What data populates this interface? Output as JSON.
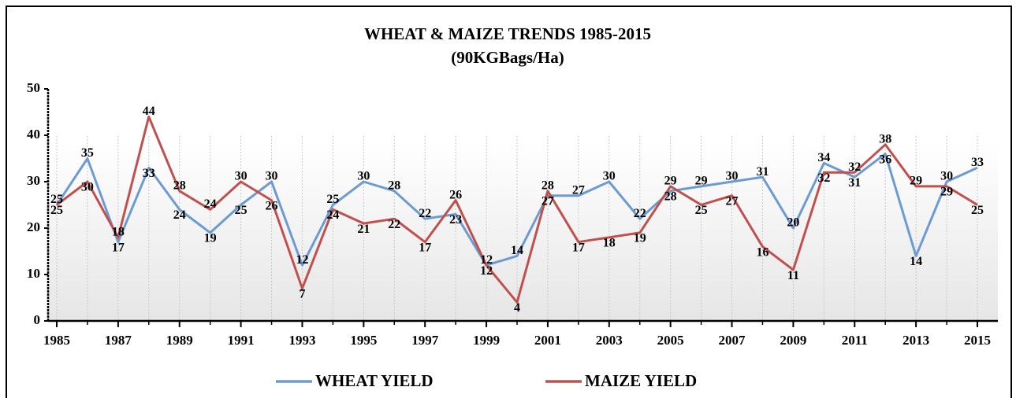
{
  "chart_data": {
    "type": "line",
    "title": "WHEAT & MAIZE TRENDS 1985-2015",
    "subtitle": "(90KGBags/Ha)",
    "x": [
      1985,
      1986,
      1987,
      1988,
      1989,
      1990,
      1991,
      1992,
      1993,
      1994,
      1995,
      1996,
      1997,
      1998,
      1999,
      2000,
      2001,
      2002,
      2003,
      2004,
      2005,
      2006,
      2007,
      2008,
      2009,
      2010,
      2011,
      2012,
      2013,
      2014,
      2015
    ],
    "series": [
      {
        "name": "WHEAT YIELD",
        "color": "#6b9bd2",
        "values": [
          25,
          35,
          17,
          33,
          24,
          19,
          25,
          30,
          12,
          25,
          30,
          28,
          22,
          23,
          12,
          14,
          27,
          27,
          30,
          22,
          28,
          29,
          30,
          31,
          20,
          34,
          31,
          36,
          14,
          30,
          33
        ]
      },
      {
        "name": "MAIZE YIELD",
        "color": "#c0504d",
        "values": [
          25,
          30,
          18,
          44,
          28,
          24,
          30,
          26,
          7,
          24,
          21,
          22,
          17,
          26,
          12,
          4,
          28,
          17,
          18,
          19,
          29,
          25,
          27,
          16,
          11,
          32,
          32,
          38,
          29,
          29,
          25
        ]
      }
    ],
    "xlim": [
      1985,
      2015
    ],
    "xticks": [
      1985,
      1987,
      1989,
      1991,
      1993,
      1995,
      1997,
      1999,
      2001,
      2003,
      2005,
      2007,
      2009,
      2011,
      2013,
      2015
    ],
    "ylim": [
      0,
      50
    ],
    "yticks": [
      0,
      10,
      20,
      30,
      40,
      50
    ],
    "grid": true,
    "legend": "bottom"
  }
}
